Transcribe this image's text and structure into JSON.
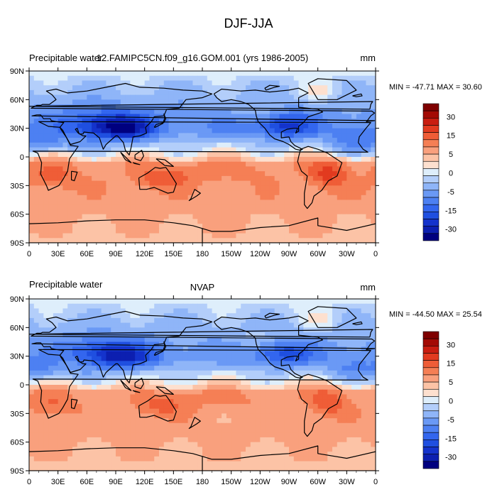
{
  "figure": {
    "title": "DJF-JJA"
  },
  "colors": {
    "levels": [
      -40,
      -35,
      -30,
      -25,
      -20,
      -15,
      -10,
      -5,
      -2,
      0,
      2,
      5,
      10,
      15,
      20,
      25,
      30,
      35
    ],
    "fills": [
      "#00007f",
      "#0c1fb0",
      "#1433cc",
      "#1f4fe0",
      "#3366ee",
      "#4d80f2",
      "#6a99f5",
      "#8fb5f8",
      "#b3cefa",
      "#deeefb",
      "#fde0cf",
      "#fcc3a6",
      "#f9a07d",
      "#f57f55",
      "#ef5d37",
      "#e23a1f",
      "#c91d10",
      "#a30b05",
      "#7f0000"
    ],
    "coast": "#000000"
  },
  "chart_data": [
    {
      "type": "heatmap",
      "title": "12.FAMIPC5CN.f09_g16.GOM.001 (yrs 1986-2005)",
      "left_title": "Precipitable water",
      "units": "mm",
      "min_max_label": "MIN = -47.71 MAX =  30.60",
      "min": -47.71,
      "max": 30.6,
      "x_ticks": [
        "0",
        "30E",
        "60E",
        "90E",
        "120E",
        "150E",
        "180",
        "150W",
        "120W",
        "90W",
        "60W",
        "30W",
        "0"
      ],
      "y_ticks": [
        "90N",
        "60N",
        "30N",
        "0",
        "30S",
        "60S",
        "90S"
      ],
      "xlim": [
        0,
        360
      ],
      "ylim": [
        -90,
        90
      ],
      "colorbar_labels": [
        "30",
        "15",
        "5",
        "0",
        "-5",
        "-15",
        "-30"
      ]
    },
    {
      "type": "heatmap",
      "title": "NVAP",
      "left_title": "Precipitable water",
      "units": "mm",
      "min_max_label": "MIN = -44.50 MAX =  25.54",
      "min": -44.5,
      "max": 25.54,
      "x_ticks": [
        "0",
        "30E",
        "60E",
        "90E",
        "120E",
        "150E",
        "180",
        "150W",
        "120W",
        "90W",
        "60W",
        "30W",
        "0"
      ],
      "y_ticks": [
        "90N",
        "60N",
        "30N",
        "0",
        "30S",
        "60S",
        "90S"
      ],
      "xlim": [
        0,
        360
      ],
      "ylim": [
        -90,
        90
      ],
      "colorbar_labels": [
        "30",
        "15",
        "5",
        "0",
        "-5",
        "-15",
        "-30"
      ]
    }
  ]
}
